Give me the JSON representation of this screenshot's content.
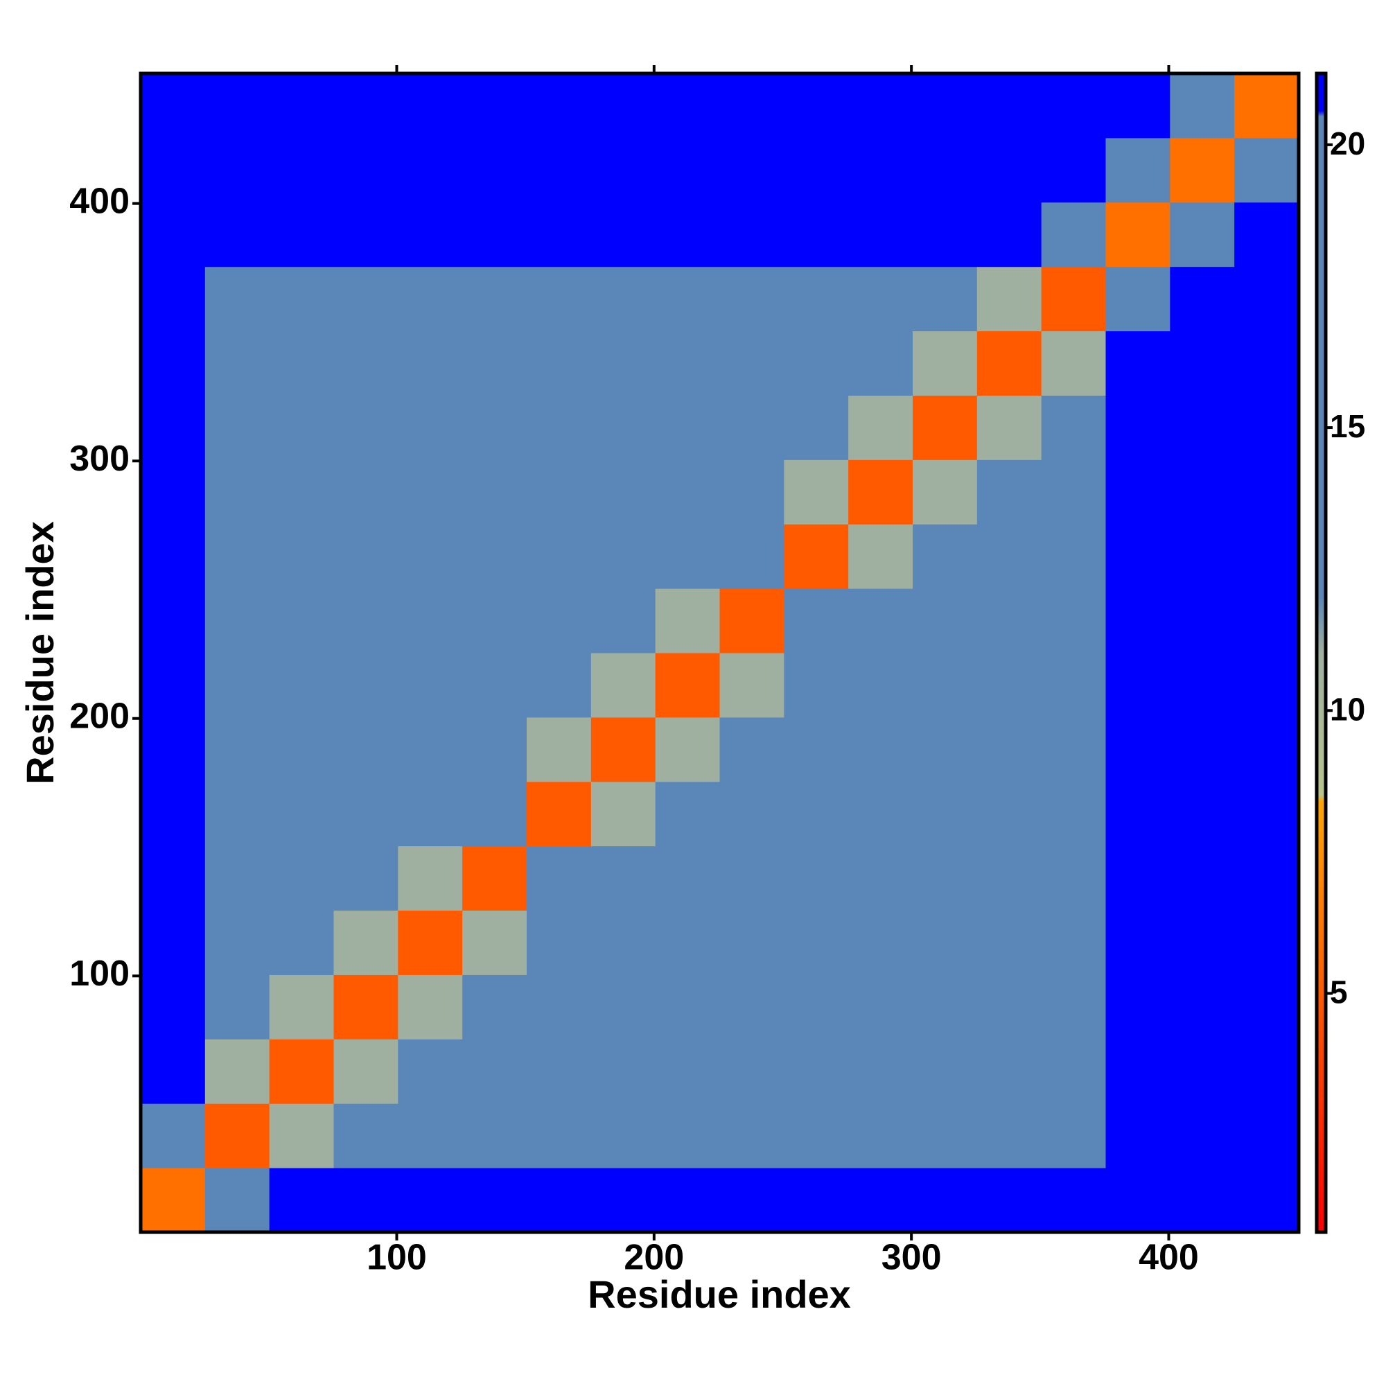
{
  "chart_data": {
    "type": "heatmap",
    "xlabel": "Residue index",
    "ylabel": "Residue index",
    "xlim": [
      0.5,
      450.5
    ],
    "ylim": [
      0.5,
      450.5
    ],
    "xticks": [
      100,
      200,
      300,
      400
    ],
    "yticks": [
      100,
      200,
      300,
      400
    ],
    "zlim": [
      0.78,
      21.26
    ],
    "zticks": [
      5,
      10,
      15,
      20
    ],
    "colorscale": [
      [
        0.78,
        "#ff0000"
      ],
      [
        5,
        "#ff5a00"
      ],
      [
        8.4,
        "#ffa500"
      ],
      [
        8.5,
        "#b8c48a"
      ],
      [
        11,
        "#9fb0a0"
      ],
      [
        12,
        "#5b87b8"
      ],
      [
        20.5,
        "#5b87b8"
      ],
      [
        20.6,
        "#0000ff"
      ],
      [
        21.26,
        "#0000ff"
      ]
    ],
    "z": [
      [
        6,
        12,
        21,
        21,
        21,
        21,
        21,
        21,
        21,
        21,
        21,
        21,
        21,
        21,
        21,
        21,
        21,
        21
      ],
      [
        12,
        5,
        11,
        14,
        14,
        14,
        18,
        18,
        18,
        18,
        19.5,
        19.5,
        19.5,
        19.5,
        19.5,
        21,
        21,
        21
      ],
      [
        21,
        11,
        5,
        11,
        14,
        14,
        18,
        18,
        18,
        18,
        19.5,
        19.5,
        19.5,
        19.5,
        19.5,
        21,
        21,
        21
      ],
      [
        21,
        14,
        11,
        5,
        11,
        14,
        18,
        18,
        18,
        18,
        19.5,
        19.5,
        19.5,
        19.5,
        19.5,
        21,
        21,
        21
      ],
      [
        21,
        14,
        14,
        11,
        5,
        11,
        18,
        18,
        18,
        18,
        19.5,
        19.5,
        19.5,
        19.5,
        19.5,
        21,
        21,
        21
      ],
      [
        21,
        14,
        14,
        14,
        11,
        5,
        16,
        18,
        18,
        18,
        19.5,
        19.5,
        19.5,
        19.5,
        19.5,
        21,
        21,
        21
      ],
      [
        21,
        18,
        18,
        18,
        18,
        16,
        5,
        11,
        14,
        14,
        18.5,
        18.5,
        18.5,
        18.5,
        18.5,
        21,
        21,
        21
      ],
      [
        21,
        18,
        18,
        18,
        18,
        18,
        11,
        5,
        11,
        14,
        18.5,
        18.5,
        18.5,
        18.5,
        18.5,
        21,
        21,
        21
      ],
      [
        21,
        18,
        18,
        18,
        18,
        18,
        14,
        11,
        5,
        11,
        18.5,
        18.5,
        18.5,
        18.5,
        18.5,
        21,
        21,
        21
      ],
      [
        21,
        18,
        18,
        18,
        18,
        18,
        14,
        14,
        11,
        5,
        16,
        18.5,
        18.5,
        18.5,
        18.5,
        21,
        21,
        21
      ],
      [
        21,
        19.5,
        19.5,
        19.5,
        19.5,
        19.5,
        18.5,
        18.5,
        18.5,
        16,
        5,
        11,
        14,
        14,
        14,
        21,
        21,
        21
      ],
      [
        21,
        19.5,
        19.5,
        19.5,
        19.5,
        19.5,
        18.5,
        18.5,
        18.5,
        18.5,
        11,
        5,
        11,
        14,
        14,
        21,
        21,
        21
      ],
      [
        21,
        19.5,
        19.5,
        19.5,
        19.5,
        19.5,
        18.5,
        18.5,
        18.5,
        18.5,
        14,
        11,
        5,
        11,
        14,
        21,
        21,
        21
      ],
      [
        21,
        19.5,
        19.5,
        19.5,
        19.5,
        19.5,
        18.5,
        18.5,
        18.5,
        18.5,
        14,
        14,
        11,
        5,
        11,
        21,
        21,
        21
      ],
      [
        21,
        19.5,
        19.5,
        19.5,
        19.5,
        19.5,
        18.5,
        18.5,
        18.5,
        18.5,
        14,
        14,
        14,
        11,
        5,
        13,
        21,
        21
      ],
      [
        21,
        21,
        21,
        21,
        21,
        21,
        21,
        21,
        21,
        21,
        21,
        21,
        21,
        21,
        13,
        6,
        12,
        21
      ],
      [
        21,
        21,
        21,
        21,
        21,
        21,
        21,
        21,
        21,
        21,
        21,
        21,
        21,
        21,
        21,
        12,
        6,
        12
      ],
      [
        21,
        21,
        21,
        21,
        21,
        21,
        21,
        21,
        21,
        21,
        21,
        21,
        21,
        21,
        21,
        21,
        12,
        6
      ]
    ]
  }
}
